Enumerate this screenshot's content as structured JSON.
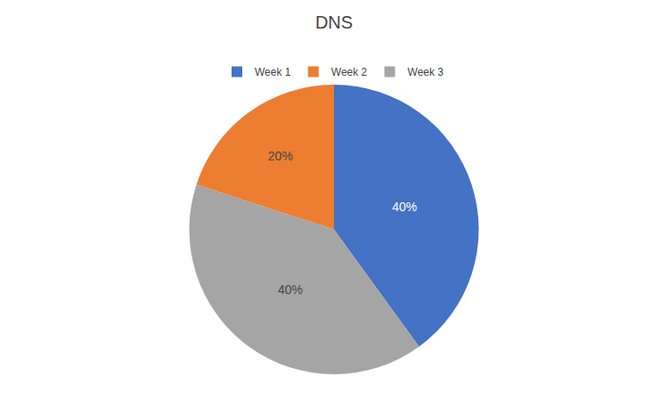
{
  "chart_data": {
    "type": "pie",
    "title": "DNS",
    "categories": [
      "Week 1",
      "Week 2",
      "Week 3"
    ],
    "values": [
      40,
      20,
      40
    ],
    "value_labels": [
      "40%",
      "20%",
      "40%"
    ],
    "colors": [
      "#4472C4",
      "#ED7D31",
      "#A5A5A5"
    ],
    "data_labels": true,
    "legend": "top"
  }
}
